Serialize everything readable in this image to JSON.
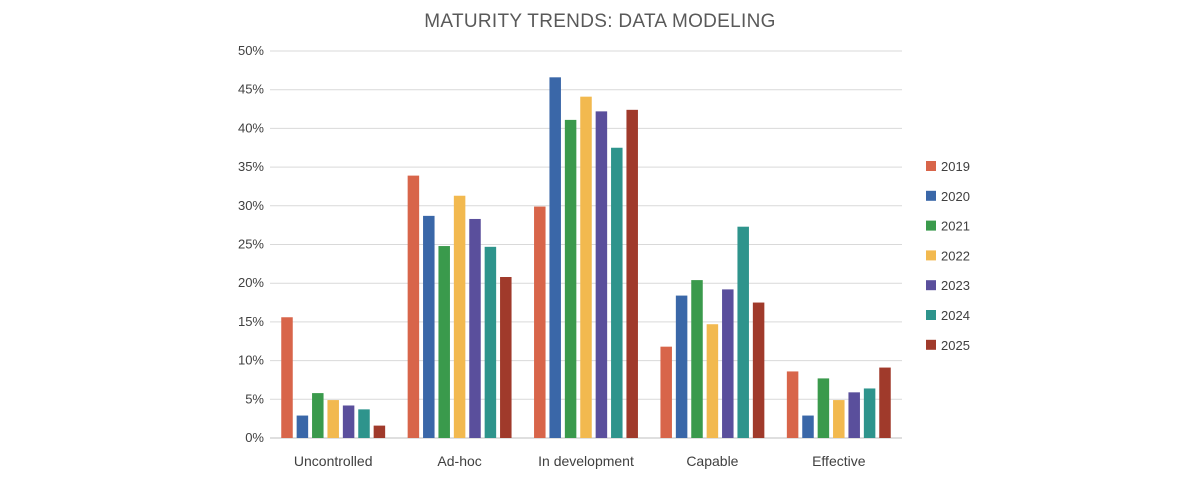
{
  "chart_data": {
    "type": "bar",
    "title": "MATURITY TRENDS: DATA MODELING",
    "xlabel": "",
    "ylabel": "",
    "ylim": [
      0,
      50
    ],
    "yticks": [
      "0%",
      "5%",
      "10%",
      "15%",
      "20%",
      "25%",
      "30%",
      "35%",
      "40%",
      "45%",
      "50%"
    ],
    "grid": true,
    "legend_position": "right",
    "categories": [
      "Uncontrolled",
      "Ad-hoc",
      "In development",
      "Capable",
      "Effective"
    ],
    "series": [
      {
        "name": "2019",
        "color": "#d8654a",
        "values": [
          15.6,
          33.9,
          29.9,
          11.8,
          8.6
        ]
      },
      {
        "name": "2020",
        "color": "#3a67a8",
        "values": [
          2.9,
          28.7,
          46.6,
          18.4,
          2.9
        ]
      },
      {
        "name": "2021",
        "color": "#3a9a4c",
        "values": [
          5.8,
          24.8,
          41.1,
          20.4,
          7.7
        ]
      },
      {
        "name": "2022",
        "color": "#f2b94f",
        "values": [
          4.9,
          31.3,
          44.1,
          14.7,
          4.9
        ]
      },
      {
        "name": "2023",
        "color": "#5a4f9c",
        "values": [
          4.2,
          28.3,
          42.2,
          19.2,
          5.9
        ]
      },
      {
        "name": "2024",
        "color": "#2e948c",
        "values": [
          3.7,
          24.7,
          37.5,
          27.3,
          6.4
        ]
      },
      {
        "name": "2025",
        "color": "#a03a2b",
        "values": [
          1.6,
          20.8,
          42.4,
          17.5,
          9.1
        ]
      }
    ]
  }
}
